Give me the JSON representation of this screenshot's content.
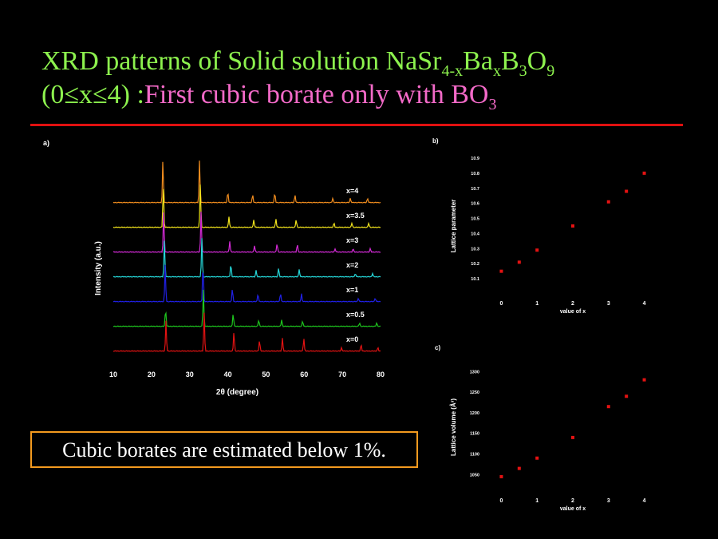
{
  "slide": {
    "title_main": "XRD patterns of Solid solution NaSr",
    "title_sub1": "4-x",
    "title_ba": "Ba",
    "title_sub2": "x",
    "title_b": "B",
    "title_sub3": "3",
    "title_o": "O",
    "title_sub4": "9",
    "title_line2_a": "(0≤x≤4) :",
    "title_line2_b": "First cubic borate only with BO",
    "title_line2_sub": "3",
    "note": "Cubic borates are estimated below 1%."
  },
  "colors": {
    "title_green": "#8df24e",
    "title_pink": "#f36ac8",
    "rule": "#e01010",
    "note_border": "#f39a1f",
    "points": "#e31212"
  },
  "chart_data": [
    {
      "type": "line",
      "panel_label": "a)",
      "xlabel": "2θ (degree)",
      "ylabel": "Intensity (a.u.)",
      "xlim": [
        10,
        80
      ],
      "x_ticks": [
        10,
        20,
        30,
        40,
        50,
        60,
        70,
        80
      ],
      "series": [
        {
          "name": "x=4",
          "color": "#f08c1e",
          "peaks": [
            [
              23.0,
              1.0
            ],
            [
              32.6,
              1.0
            ],
            [
              40.0,
              0.25
            ],
            [
              46.5,
              0.18
            ],
            [
              52.3,
              0.22
            ],
            [
              57.6,
              0.18
            ],
            [
              67.5,
              0.1
            ],
            [
              72.1,
              0.1
            ],
            [
              76.6,
              0.1
            ]
          ]
        },
        {
          "name": "x=3.5",
          "color": "#f2e41c",
          "peaks": [
            [
              23.1,
              1.0
            ],
            [
              32.8,
              1.0
            ],
            [
              40.3,
              0.25
            ],
            [
              46.8,
              0.18
            ],
            [
              52.6,
              0.2
            ],
            [
              57.9,
              0.18
            ],
            [
              67.8,
              0.1
            ],
            [
              72.5,
              0.1
            ],
            [
              76.9,
              0.1
            ]
          ]
        },
        {
          "name": "x=3",
          "color": "#d52ad8",
          "peaks": [
            [
              23.2,
              0.95
            ],
            [
              33.0,
              0.95
            ],
            [
              40.5,
              0.25
            ],
            [
              47.0,
              0.15
            ],
            [
              52.9,
              0.2
            ],
            [
              58.2,
              0.18
            ],
            [
              68.1,
              0.08
            ],
            [
              72.8,
              0.08
            ],
            [
              77.3,
              0.08
            ]
          ]
        },
        {
          "name": "x=2",
          "color": "#25d6d8",
          "peaks": [
            [
              23.4,
              0.85
            ],
            [
              33.2,
              0.9
            ],
            [
              40.8,
              0.3
            ],
            [
              47.4,
              0.15
            ],
            [
              53.3,
              0.2
            ],
            [
              58.7,
              0.18
            ],
            [
              73.4,
              0.08
            ],
            [
              77.9,
              0.08
            ]
          ]
        },
        {
          "name": "x=1",
          "color": "#2020e6",
          "peaks": [
            [
              23.6,
              0.85
            ],
            [
              33.5,
              0.9
            ],
            [
              41.2,
              0.3
            ],
            [
              47.9,
              0.18
            ],
            [
              53.8,
              0.2
            ],
            [
              59.3,
              0.18
            ],
            [
              74.2,
              0.08
            ],
            [
              78.6,
              0.08
            ]
          ]
        },
        {
          "name": "x=0.5",
          "color": "#1ec51e",
          "peaks": [
            [
              23.7,
              0.4
            ],
            [
              33.6,
              0.85
            ],
            [
              41.4,
              0.3
            ],
            [
              48.1,
              0.15
            ],
            [
              54.1,
              0.15
            ],
            [
              59.6,
              0.12
            ],
            [
              74.5,
              0.08
            ],
            [
              79.0,
              0.08
            ]
          ]
        },
        {
          "name": "x=0",
          "color": "#e31212",
          "peaks": [
            [
              23.8,
              0.7
            ],
            [
              33.8,
              0.9
            ],
            [
              41.6,
              0.45
            ],
            [
              48.3,
              0.25
            ],
            [
              54.3,
              0.3
            ],
            [
              59.9,
              0.3
            ],
            [
              69.8,
              0.08
            ],
            [
              74.9,
              0.15
            ],
            [
              79.3,
              0.08
            ]
          ]
        }
      ]
    },
    {
      "type": "scatter",
      "panel_label": "b)",
      "xlabel": "value of x",
      "ylabel": "Lattice parameter",
      "xlim": [
        -0.3,
        4.3
      ],
      "ylim": [
        10.0,
        10.9
      ],
      "x_ticks": [
        0,
        1,
        2,
        3,
        4
      ],
      "y_ticks": [
        10.1,
        10.2,
        10.3,
        10.4,
        10.5,
        10.6,
        10.7,
        10.8,
        10.9
      ],
      "x": [
        0,
        0.5,
        1,
        2,
        3,
        3.5,
        4
      ],
      "y": [
        10.15,
        10.21,
        10.29,
        10.45,
        10.61,
        10.68,
        10.8
      ]
    },
    {
      "type": "scatter",
      "panel_label": "c)",
      "xlabel": "value of x",
      "ylabel": "Lattice volume (Å³)",
      "xlim": [
        -0.3,
        4.3
      ],
      "ylim": [
        1010,
        1320
      ],
      "x_ticks": [
        0,
        1,
        2,
        3,
        4
      ],
      "y_ticks": [
        1050,
        1100,
        1150,
        1200,
        1250,
        1300
      ],
      "x": [
        0,
        0.5,
        1,
        2,
        3,
        3.5,
        4
      ],
      "y": [
        1045,
        1065,
        1090,
        1140,
        1215,
        1240,
        1280
      ]
    }
  ]
}
